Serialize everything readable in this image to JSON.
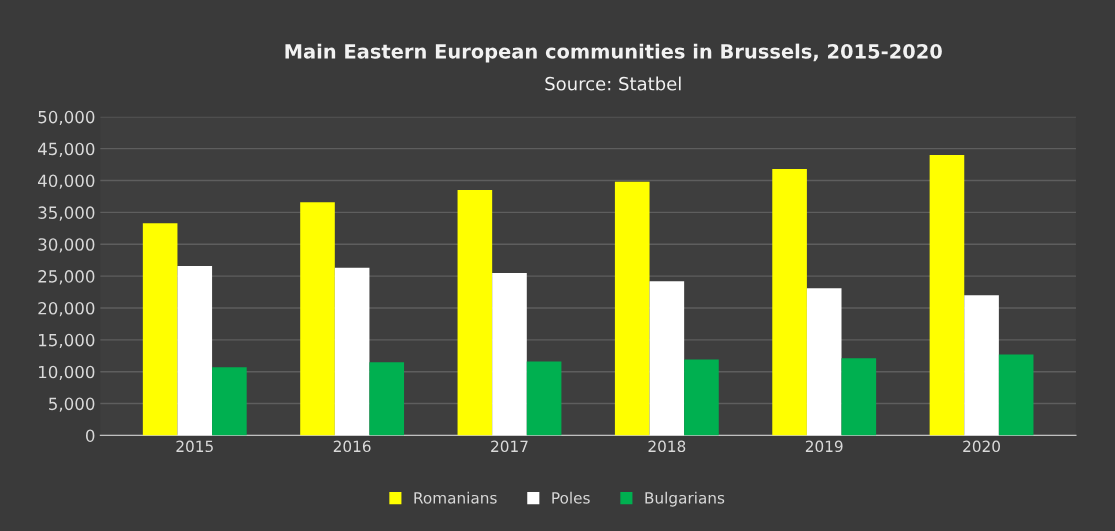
{
  "chart_data": {
    "type": "bar",
    "title": "Main Eastern European communities in Brussels, 2015-2020",
    "subtitle": "Source: Statbel",
    "categories": [
      "2015",
      "2016",
      "2017",
      "2018",
      "2019",
      "2020"
    ],
    "series": [
      {
        "name": "Romanians",
        "color": "#ffff00",
        "values": [
          33300,
          36600,
          38500,
          39800,
          41800,
          44000
        ]
      },
      {
        "name": "Poles",
        "color": "#ffffff",
        "values": [
          26600,
          26300,
          25500,
          24200,
          23100,
          22000
        ]
      },
      {
        "name": "Bulgarians",
        "color": "#00b050",
        "values": [
          10700,
          11500,
          11600,
          11900,
          12100,
          12700
        ]
      }
    ],
    "ylim": [
      0,
      50000
    ],
    "yticks": [
      {
        "value": 0,
        "label": "0"
      },
      {
        "value": 5000,
        "label": "5,000"
      },
      {
        "value": 10000,
        "label": "10,000"
      },
      {
        "value": 15000,
        "label": "15,000"
      },
      {
        "value": 20000,
        "label": "20,000"
      },
      {
        "value": 25000,
        "label": "25,000"
      },
      {
        "value": 30000,
        "label": "30,000"
      },
      {
        "value": 35000,
        "label": "35,000"
      },
      {
        "value": 40000,
        "label": "40,000"
      },
      {
        "value": 45000,
        "label": "45,000"
      },
      {
        "value": 50000,
        "label": "50,000"
      }
    ],
    "grid": "y",
    "legend": "bottom"
  }
}
